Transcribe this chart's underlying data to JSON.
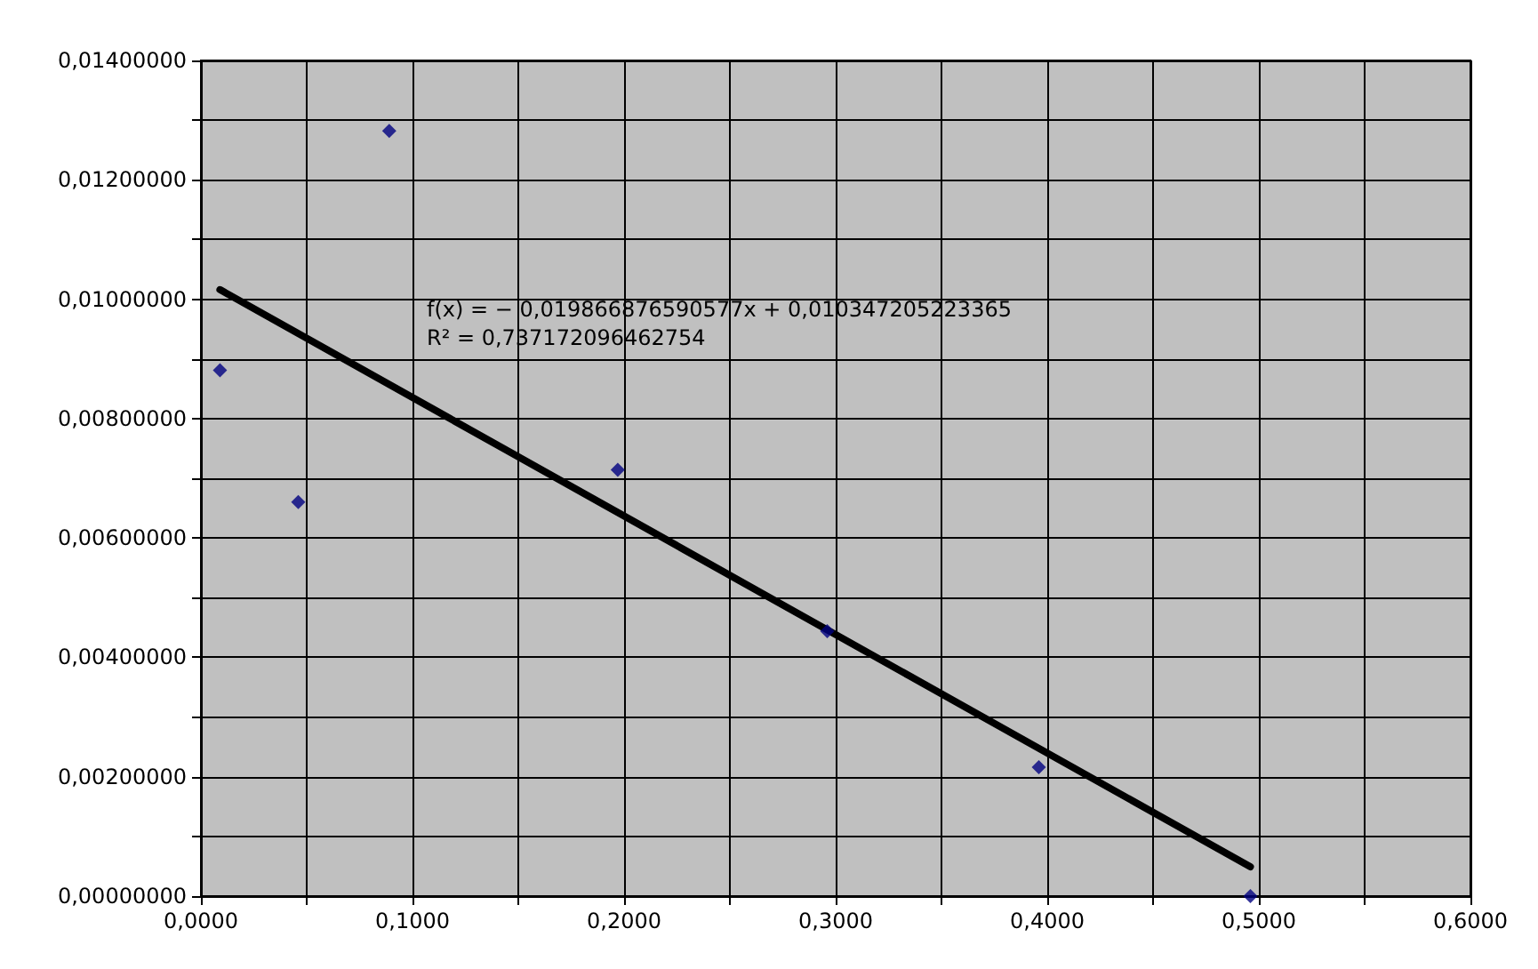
{
  "chart_data": {
    "type": "scatter",
    "series": [
      {
        "color": "#000080",
        "marker": "diamond",
        "x": [
          0.009,
          0.046,
          0.089,
          0.197,
          0.296,
          0.396,
          0.496
        ],
        "values": [
          0.00881,
          0.0066,
          0.01282,
          0.00714,
          0.00444,
          0.00216,
          0.0
        ]
      },
      {
        "type": "line",
        "color": "#000000",
        "marker": "none",
        "x": [
          0.009,
          0.496
        ],
        "values": [
          0.01016,
          0.00049
        ]
      }
    ],
    "annotations": [
      "f(x) = − 0,019866876590577x + 0,010347205223365",
      "R² = 0,737172096462754"
    ],
    "xlim": [
      0,
      0.6
    ],
    "xticks": [
      {
        "value": 0,
        "label": "0,0000"
      },
      {
        "value": 0.05,
        "label": null
      },
      {
        "value": 0.1,
        "label": "0,1000"
      },
      {
        "value": 0.15,
        "label": null
      },
      {
        "value": 0.2,
        "label": "0,2000"
      },
      {
        "value": 0.25,
        "label": null
      },
      {
        "value": 0.3,
        "label": "0,3000"
      },
      {
        "value": 0.35,
        "label": null
      },
      {
        "value": 0.4,
        "label": "0,4000"
      },
      {
        "value": 0.45,
        "label": null
      },
      {
        "value": 0.5,
        "label": "0,5000"
      },
      {
        "value": 0.55,
        "label": null
      },
      {
        "value": 0.6,
        "label": "0,6000"
      }
    ],
    "ylim": [
      0,
      0.014
    ],
    "yticks": [
      {
        "value": 0,
        "label": "0,00000000"
      },
      {
        "value": 0.001,
        "label": null
      },
      {
        "value": 0.002,
        "label": "0,00200000"
      },
      {
        "value": 0.003,
        "label": null
      },
      {
        "value": 0.004,
        "label": "0,00400000"
      },
      {
        "value": 0.005,
        "label": null
      },
      {
        "value": 0.006,
        "label": "0,00600000"
      },
      {
        "value": 0.007,
        "label": null
      },
      {
        "value": 0.008,
        "label": "0,00800000"
      },
      {
        "value": 0.009,
        "label": null
      },
      {
        "value": 0.01,
        "label": "0,01000000"
      },
      {
        "value": 0.011,
        "label": null
      },
      {
        "value": 0.012,
        "label": "0,01200000"
      },
      {
        "value": 0.013,
        "label": null
      },
      {
        "value": 0.014,
        "label": "0,01400000"
      }
    ],
    "grid": true
  }
}
